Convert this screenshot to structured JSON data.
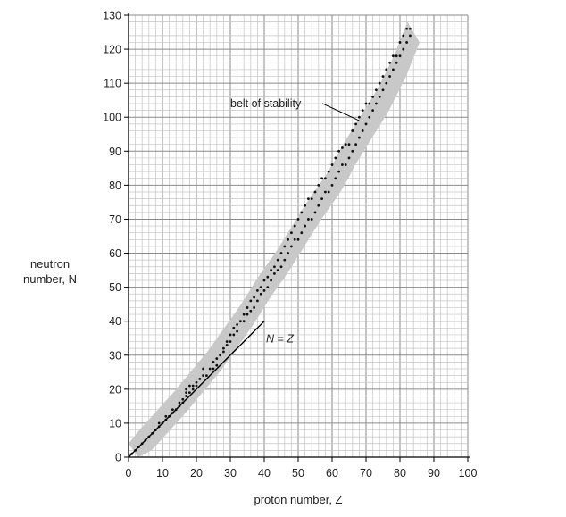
{
  "chart_data": {
    "type": "scatter",
    "title": "",
    "xlabel": "proton number, Z",
    "ylabel_lines": [
      "neutron",
      "number, N"
    ],
    "xlim": [
      0,
      100
    ],
    "ylim": [
      0,
      130
    ],
    "x_ticks": [
      "0",
      "10",
      "20",
      "30",
      "40",
      "50",
      "60",
      "70",
      "80",
      "90",
      "100"
    ],
    "y_ticks": [
      "0",
      "10",
      "20",
      "30",
      "40",
      "50",
      "60",
      "70",
      "80",
      "90",
      "100",
      "110",
      "120",
      "130"
    ],
    "grid": true,
    "line_NZ": {
      "label": "N = Z",
      "points": [
        [
          0,
          0
        ],
        [
          40,
          40
        ]
      ]
    },
    "belt_annotation": {
      "label": "belt of stability",
      "text_at": [
        30,
        103
      ],
      "arrow_to": [
        68,
        99
      ]
    },
    "belt_band_center": [
      [
        1,
        1
      ],
      [
        5,
        5
      ],
      [
        10,
        10.5
      ],
      [
        15,
        16
      ],
      [
        20,
        22
      ],
      [
        25,
        28
      ],
      [
        30,
        35
      ],
      [
        35,
        42
      ],
      [
        40,
        50
      ],
      [
        45,
        57
      ],
      [
        50,
        65
      ],
      [
        55,
        73
      ],
      [
        60,
        80
      ],
      [
        63,
        85
      ],
      [
        65,
        89
      ],
      [
        70,
        97
      ],
      [
        75,
        105
      ],
      [
        80,
        115
      ],
      [
        84,
        125
      ]
    ],
    "belt_band_halfwidth": 3,
    "series": [
      {
        "points": [
          [
            1,
            1
          ],
          [
            2,
            2
          ],
          [
            3,
            3
          ],
          [
            4,
            4
          ],
          [
            5,
            5
          ],
          [
            6,
            6
          ],
          [
            7,
            7
          ],
          [
            8,
            8
          ],
          [
            9,
            9
          ],
          [
            9,
            10
          ],
          [
            10,
            10
          ],
          [
            11,
            11
          ],
          [
            11,
            12
          ],
          [
            12,
            12
          ],
          [
            13,
            13
          ],
          [
            13,
            14
          ],
          [
            14,
            14
          ],
          [
            15,
            15
          ],
          [
            15,
            16
          ],
          [
            16,
            16
          ],
          [
            16,
            17
          ],
          [
            17,
            18
          ],
          [
            17,
            19
          ],
          [
            17,
            20
          ],
          [
            18,
            19
          ],
          [
            18,
            21
          ],
          [
            19,
            20
          ],
          [
            19,
            21
          ],
          [
            20,
            21
          ],
          [
            20,
            22
          ],
          [
            21,
            23
          ],
          [
            22,
            24
          ],
          [
            22,
            26
          ],
          [
            23,
            24
          ],
          [
            24,
            26
          ],
          [
            25,
            26
          ],
          [
            25,
            28
          ],
          [
            26,
            27
          ],
          [
            26,
            29
          ],
          [
            27,
            30
          ],
          [
            28,
            31
          ],
          [
            28,
            32
          ],
          [
            29,
            33
          ],
          [
            29,
            34
          ],
          [
            30,
            34
          ],
          [
            30,
            36
          ],
          [
            31,
            36
          ],
          [
            31,
            38
          ],
          [
            32,
            37
          ],
          [
            32,
            39
          ],
          [
            33,
            40
          ],
          [
            34,
            40
          ],
          [
            34,
            42
          ],
          [
            35,
            42
          ],
          [
            35,
            44
          ],
          [
            36,
            43
          ],
          [
            36,
            46
          ],
          [
            37,
            44
          ],
          [
            37,
            47
          ],
          [
            38,
            46
          ],
          [
            38,
            49
          ],
          [
            39,
            48
          ],
          [
            39,
            50
          ],
          [
            40,
            49
          ],
          [
            40,
            52
          ],
          [
            41,
            50
          ],
          [
            41,
            53
          ],
          [
            42,
            52
          ],
          [
            42,
            55
          ],
          [
            43,
            54
          ],
          [
            43,
            56
          ],
          [
            44,
            55
          ],
          [
            44,
            58
          ],
          [
            45,
            56
          ],
          [
            45,
            60
          ],
          [
            46,
            58
          ],
          [
            46,
            62
          ],
          [
            47,
            60
          ],
          [
            47,
            64
          ],
          [
            48,
            62
          ],
          [
            48,
            66
          ],
          [
            49,
            64
          ],
          [
            49,
            68
          ],
          [
            50,
            64
          ],
          [
            50,
            70
          ],
          [
            51,
            66
          ],
          [
            51,
            72
          ],
          [
            52,
            68
          ],
          [
            52,
            74
          ],
          [
            53,
            70
          ],
          [
            53,
            76
          ],
          [
            54,
            70
          ],
          [
            54,
            76
          ],
          [
            55,
            72
          ],
          [
            55,
            78
          ],
          [
            56,
            74
          ],
          [
            56,
            80
          ],
          [
            57,
            76
          ],
          [
            57,
            82
          ],
          [
            58,
            78
          ],
          [
            58,
            82
          ],
          [
            59,
            78
          ],
          [
            59,
            84
          ],
          [
            60,
            80
          ],
          [
            60,
            86
          ],
          [
            61,
            82
          ],
          [
            61,
            88
          ],
          [
            62,
            84
          ],
          [
            62,
            90
          ],
          [
            63,
            86
          ],
          [
            63,
            91
          ],
          [
            64,
            86
          ],
          [
            64,
            92
          ],
          [
            65,
            88
          ],
          [
            65,
            92
          ],
          [
            66,
            90
          ],
          [
            66,
            96
          ],
          [
            67,
            92
          ],
          [
            67,
            98
          ],
          [
            68,
            94
          ],
          [
            68,
            100
          ],
          [
            69,
            96
          ],
          [
            69,
            102
          ],
          [
            70,
            98
          ],
          [
            70,
            104
          ],
          [
            71,
            100
          ],
          [
            71,
            104
          ],
          [
            72,
            102
          ],
          [
            72,
            106
          ],
          [
            73,
            104
          ],
          [
            73,
            108
          ],
          [
            74,
            106
          ],
          [
            74,
            110
          ],
          [
            75,
            108
          ],
          [
            75,
            112
          ],
          [
            76,
            110
          ],
          [
            76,
            114
          ],
          [
            77,
            112
          ],
          [
            77,
            116
          ],
          [
            78,
            114
          ],
          [
            78,
            118
          ],
          [
            79,
            116
          ],
          [
            79,
            118
          ],
          [
            80,
            118
          ],
          [
            80,
            122
          ],
          [
            81,
            120
          ],
          [
            81,
            124
          ],
          [
            82,
            122
          ],
          [
            82,
            126
          ],
          [
            83,
            124
          ],
          [
            83,
            126
          ]
        ]
      }
    ]
  }
}
